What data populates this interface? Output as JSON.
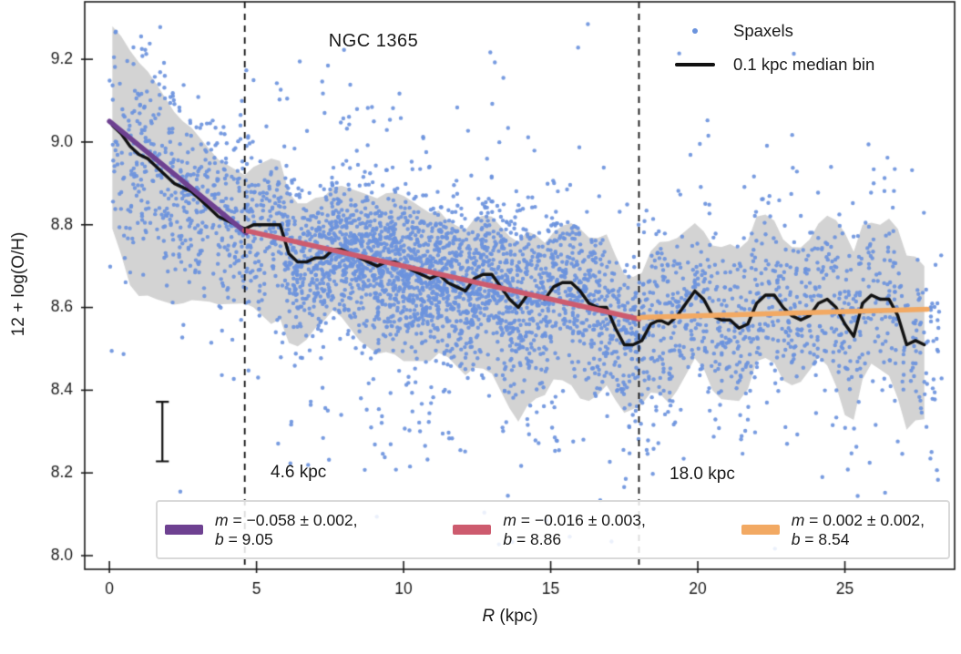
{
  "figure": {
    "title": "NGC 1365",
    "ylabel": "12 + log(O/H)",
    "xlabel_var": "R",
    "xlabel_rest": " (kpc)"
  },
  "annotations": {
    "break1": "4.6 kpc",
    "break2": "18.0 kpc"
  },
  "legend_top": {
    "items": [
      {
        "label": "Spaxels",
        "marker": "dot",
        "color": "#6b93dd"
      },
      {
        "label": "0.1 kpc median bin",
        "marker": "line",
        "color": "#111111"
      }
    ]
  },
  "legend_fits": {
    "entries": [
      {
        "color": "#6e4191",
        "var1": "m",
        "text1": " = −0.058 ± 0.002,",
        "var2": "b",
        "text2": " = 9.05"
      },
      {
        "color": "#cd5b6e",
        "var1": "m",
        "text1": " = −0.016 ± 0.003,",
        "var2": "b",
        "text2": " = 8.86"
      },
      {
        "color": "#f2a963",
        "var1": "m",
        "text1": " = 0.002 ± 0.002,",
        "var2": "b",
        "text2": " = 8.54"
      }
    ]
  },
  "colors": {
    "scatter": "#6b93dd",
    "band": "#d3d3d3",
    "median": "#111111",
    "frame": "#1a1a1a",
    "dashed": "#111111",
    "text": "#1a1a1a"
  },
  "chart_data": {
    "type": "scatter",
    "title": "NGC 1365",
    "xlabel": "R (kpc)",
    "ylabel": "12 + log(O/H)",
    "xlim": [
      -0.84,
      28.73
    ],
    "ylim": [
      7.967,
      9.339
    ],
    "x_ticks": [
      0,
      5,
      10,
      15,
      20,
      25
    ],
    "x_tick_labels": [
      "0",
      "5",
      "10",
      "15",
      "20",
      "25"
    ],
    "y_ticks": [
      8.0,
      8.2,
      8.4,
      8.6,
      8.8,
      9.0,
      9.2
    ],
    "y_tick_labels": [
      "8.0",
      "8.2",
      "8.4",
      "8.6",
      "8.8",
      "9.0",
      "9.2"
    ],
    "grid": false,
    "legend_position": "upper right",
    "break_radii_kpc": [
      4.6,
      18.0
    ],
    "median_bin_kpc": 0.1,
    "fits": [
      {
        "name": "inner",
        "m": -0.058,
        "m_err": 0.002,
        "b": 9.05,
        "r_range": [
          0.0,
          4.65
        ],
        "color": "#6e4191"
      },
      {
        "name": "middle",
        "m": -0.016,
        "m_err": 0.003,
        "b": 8.86,
        "r_range": [
          4.6,
          18.0
        ],
        "color": "#cd5b6e"
      },
      {
        "name": "outer",
        "m": 0.002,
        "m_err": 0.002,
        "b": 8.54,
        "r_range": [
          18.0,
          27.8
        ],
        "color": "#f2a963"
      }
    ],
    "median_line": {
      "r": [
        0.1,
        0.4,
        0.7,
        1.0,
        1.3,
        1.6,
        1.9,
        2.2,
        2.5,
        2.8,
        3.1,
        3.4,
        3.7,
        4.0,
        4.3,
        4.6,
        4.9,
        5.2,
        5.5,
        5.8,
        6.1,
        6.4,
        6.7,
        7.0,
        7.3,
        7.6,
        7.9,
        8.2,
        8.5,
        8.8,
        9.1,
        9.4,
        9.7,
        10.0,
        10.3,
        10.6,
        10.9,
        11.2,
        11.5,
        11.8,
        12.1,
        12.4,
        12.7,
        13.0,
        13.3,
        13.6,
        13.9,
        14.2,
        14.5,
        14.8,
        15.1,
        15.4,
        15.7,
        16.0,
        16.3,
        16.6,
        16.9,
        17.2,
        17.5,
        17.8,
        18.1,
        18.4,
        18.7,
        19.0,
        19.3,
        19.6,
        19.9,
        20.2,
        20.5,
        20.8,
        21.1,
        21.4,
        21.7,
        22.0,
        22.3,
        22.6,
        22.9,
        23.2,
        23.5,
        23.8,
        24.1,
        24.4,
        24.7,
        25.0,
        25.3,
        25.6,
        25.9,
        26.2,
        26.5,
        26.8,
        27.1,
        27.4,
        27.7
      ],
      "y": [
        9.04,
        9.02,
        8.99,
        8.97,
        8.96,
        8.94,
        8.92,
        8.9,
        8.89,
        8.88,
        8.86,
        8.84,
        8.82,
        8.81,
        8.8,
        8.79,
        8.8,
        8.8,
        8.8,
        8.8,
        8.73,
        8.71,
        8.71,
        8.72,
        8.72,
        8.74,
        8.74,
        8.73,
        8.72,
        8.71,
        8.7,
        8.71,
        8.71,
        8.7,
        8.69,
        8.68,
        8.67,
        8.68,
        8.66,
        8.65,
        8.64,
        8.67,
        8.68,
        8.68,
        8.65,
        8.62,
        8.6,
        8.63,
        8.63,
        8.62,
        8.65,
        8.66,
        8.66,
        8.64,
        8.61,
        8.6,
        8.6,
        8.55,
        8.51,
        8.51,
        8.52,
        8.56,
        8.57,
        8.56,
        8.58,
        8.61,
        8.64,
        8.62,
        8.58,
        8.57,
        8.57,
        8.55,
        8.56,
        8.61,
        8.63,
        8.63,
        8.6,
        8.58,
        8.57,
        8.58,
        8.61,
        8.62,
        8.6,
        8.56,
        8.53,
        8.61,
        8.63,
        8.62,
        8.62,
        8.58,
        8.51,
        8.52,
        8.51
      ]
    },
    "band": {
      "r": [
        0.1,
        0.8,
        1.6,
        2.5,
        3.5,
        4.6,
        5.5,
        6.5,
        7.5,
        8.5,
        10.0,
        11.5,
        13.0,
        14.0,
        15.0,
        16.0,
        17.0,
        18.0,
        19.0,
        20.0,
        21.0,
        22.0,
        23.0,
        24.0,
        25.0,
        26.0,
        27.0,
        27.7
      ],
      "top": [
        0.24,
        0.23,
        0.2,
        0.16,
        0.14,
        0.13,
        0.16,
        0.14,
        0.15,
        0.16,
        0.17,
        0.15,
        0.14,
        0.16,
        0.13,
        0.15,
        0.18,
        0.16,
        0.2,
        0.16,
        0.18,
        0.21,
        0.16,
        0.19,
        0.22,
        0.17,
        0.22,
        0.19
      ],
      "bot": [
        0.25,
        0.35,
        0.32,
        0.28,
        0.22,
        0.18,
        0.24,
        0.2,
        0.14,
        0.2,
        0.23,
        0.18,
        0.24,
        0.28,
        0.22,
        0.26,
        0.18,
        0.15,
        0.19,
        0.16,
        0.2,
        0.14,
        0.18,
        0.12,
        0.22,
        0.16,
        0.21,
        0.18
      ]
    },
    "error_bar": {
      "r": 1.8,
      "y": 8.3,
      "half_height": 0.072,
      "cap_half_width_kpc": 0.22
    },
    "scatter": {
      "seed": 42,
      "point_radius": 2.2,
      "tail_frac": 0.08,
      "tail_mult": 2.4,
      "bins": [
        [
          0,
          0.7,
          50,
          0.16
        ],
        [
          0.7,
          1.5,
          90,
          0.13
        ],
        [
          1.5,
          2.5,
          110,
          0.12
        ],
        [
          2.5,
          3.6,
          120,
          0.11
        ],
        [
          3.6,
          4.6,
          120,
          0.1
        ],
        [
          4.6,
          6,
          170,
          0.1
        ],
        [
          6,
          7,
          180,
          0.095
        ],
        [
          7,
          8,
          230,
          0.09
        ],
        [
          8,
          9,
          250,
          0.09
        ],
        [
          9,
          10,
          270,
          0.09
        ],
        [
          10,
          11,
          280,
          0.088
        ],
        [
          11,
          12,
          270,
          0.09
        ],
        [
          12,
          13,
          240,
          0.092
        ],
        [
          13,
          14,
          230,
          0.095
        ],
        [
          14,
          15,
          190,
          0.1
        ],
        [
          15,
          16,
          170,
          0.1
        ],
        [
          16,
          17,
          150,
          0.105
        ],
        [
          17,
          18,
          140,
          0.11
        ],
        [
          18,
          19,
          110,
          0.11
        ],
        [
          19,
          20,
          100,
          0.11
        ],
        [
          20,
          21,
          95,
          0.11
        ],
        [
          21,
          22,
          90,
          0.11
        ],
        [
          22,
          23,
          90,
          0.11
        ],
        [
          23,
          24,
          85,
          0.11
        ],
        [
          24,
          25,
          85,
          0.115
        ],
        [
          25,
          26,
          80,
          0.115
        ],
        [
          26,
          27,
          75,
          0.12
        ],
        [
          27,
          28.3,
          70,
          0.12
        ]
      ],
      "extra_clouds": [
        {
          "n": 55,
          "r0": 6,
          "r1": 18,
          "y0": 8.2,
          "y1": 8.44
        },
        {
          "n": 18,
          "r0": 4.5,
          "r1": 14,
          "y0": 8.98,
          "y1": 9.2
        },
        {
          "n": 14,
          "r0": 18,
          "r1": 27.8,
          "y0": 8.18,
          "y1": 8.38
        },
        {
          "n": 12,
          "r0": 18,
          "r1": 27.8,
          "y0": 8.82,
          "y1": 9.02
        },
        {
          "n": 8,
          "r0": 2,
          "r1": 6,
          "y0": 8.42,
          "y1": 8.58
        },
        {
          "n": 5,
          "r0": 12,
          "r1": 17.5,
          "y0": 8.02,
          "y1": 8.18
        }
      ]
    }
  }
}
